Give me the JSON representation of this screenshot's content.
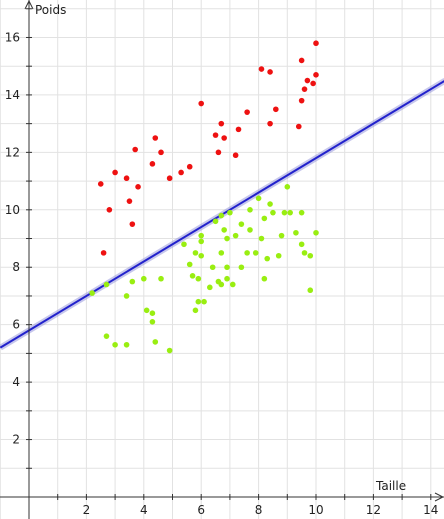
{
  "chart_data": {
    "type": "scatter",
    "xlabel": "Taille",
    "ylabel": "Poids",
    "xlim": [
      -1,
      14.5
    ],
    "ylim": [
      -1.2,
      17.4
    ],
    "x_ticks": [
      2,
      4,
      6,
      8,
      10,
      12,
      14
    ],
    "y_ticks": [
      2,
      4,
      6,
      8,
      10,
      12,
      14,
      16
    ],
    "grid": true,
    "colors": {
      "class_a": "#ee1111",
      "class_b": "#99ee11",
      "line": "#2222cc",
      "line_glow": "#9999dd"
    },
    "series": [
      {
        "color": "#ee1111",
        "points": [
          [
            2.5,
            10.9
          ],
          [
            2.6,
            8.5
          ],
          [
            2.8,
            10.0
          ],
          [
            3.0,
            11.3
          ],
          [
            3.4,
            11.1
          ],
          [
            3.5,
            10.3
          ],
          [
            3.6,
            9.5
          ],
          [
            3.7,
            12.1
          ],
          [
            3.8,
            10.8
          ],
          [
            4.3,
            11.6
          ],
          [
            4.4,
            12.5
          ],
          [
            4.6,
            12.0
          ],
          [
            4.9,
            11.1
          ],
          [
            5.3,
            11.3
          ],
          [
            5.6,
            11.5
          ],
          [
            6.0,
            13.7
          ],
          [
            6.5,
            12.6
          ],
          [
            6.6,
            12.0
          ],
          [
            6.7,
            13.0
          ],
          [
            6.8,
            12.5
          ],
          [
            7.2,
            11.9
          ],
          [
            7.3,
            12.8
          ],
          [
            7.6,
            13.4
          ],
          [
            8.1,
            14.9
          ],
          [
            8.4,
            14.8
          ],
          [
            8.4,
            13.0
          ],
          [
            8.6,
            13.5
          ],
          [
            9.4,
            12.9
          ],
          [
            9.5,
            15.2
          ],
          [
            9.5,
            13.8
          ],
          [
            9.6,
            14.2
          ],
          [
            9.7,
            14.5
          ],
          [
            9.9,
            14.4
          ],
          [
            10.0,
            15.8
          ],
          [
            10.0,
            14.7
          ]
        ]
      },
      {
        "color": "#99ee11",
        "points": [
          [
            2.2,
            7.1
          ],
          [
            2.7,
            7.4
          ],
          [
            2.7,
            5.6
          ],
          [
            3.0,
            5.3
          ],
          [
            3.4,
            7.0
          ],
          [
            3.4,
            5.3
          ],
          [
            3.6,
            7.5
          ],
          [
            4.0,
            7.6
          ],
          [
            4.1,
            6.5
          ],
          [
            4.3,
            6.4
          ],
          [
            4.3,
            6.1
          ],
          [
            4.4,
            5.4
          ],
          [
            4.6,
            7.6
          ],
          [
            4.9,
            5.1
          ],
          [
            5.4,
            8.8
          ],
          [
            5.6,
            8.1
          ],
          [
            5.7,
            7.7
          ],
          [
            5.8,
            6.5
          ],
          [
            5.8,
            8.5
          ],
          [
            5.9,
            7.6
          ],
          [
            5.9,
            6.8
          ],
          [
            6.0,
            9.1
          ],
          [
            6.0,
            8.9
          ],
          [
            6.0,
            8.4
          ],
          [
            6.1,
            6.8
          ],
          [
            6.3,
            7.3
          ],
          [
            6.4,
            8.0
          ],
          [
            6.5,
            9.6
          ],
          [
            6.6,
            7.5
          ],
          [
            6.7,
            8.5
          ],
          [
            6.7,
            7.4
          ],
          [
            6.7,
            9.8
          ],
          [
            6.8,
            9.3
          ],
          [
            6.9,
            9.0
          ],
          [
            6.9,
            7.6
          ],
          [
            6.9,
            8.0
          ],
          [
            7.0,
            9.9
          ],
          [
            7.1,
            7.4
          ],
          [
            7.2,
            9.1
          ],
          [
            7.4,
            8.0
          ],
          [
            7.4,
            9.5
          ],
          [
            7.6,
            8.5
          ],
          [
            7.7,
            10.0
          ],
          [
            7.7,
            9.3
          ],
          [
            7.9,
            8.5
          ],
          [
            8.0,
            10.4
          ],
          [
            8.1,
            9.0
          ],
          [
            8.2,
            9.7
          ],
          [
            8.2,
            7.6
          ],
          [
            8.3,
            8.3
          ],
          [
            8.4,
            10.2
          ],
          [
            8.5,
            9.9
          ],
          [
            8.7,
            8.4
          ],
          [
            8.8,
            9.1
          ],
          [
            8.9,
            9.9
          ],
          [
            9.0,
            10.8
          ],
          [
            9.1,
            9.9
          ],
          [
            9.3,
            9.2
          ],
          [
            9.5,
            9.9
          ],
          [
            9.5,
            8.8
          ],
          [
            9.6,
            8.5
          ],
          [
            9.8,
            8.4
          ],
          [
            9.8,
            7.2
          ],
          [
            10.0,
            9.2
          ]
        ]
      }
    ],
    "lines": [
      {
        "type": "linear",
        "slope": 0.6,
        "intercept": 5.8
      }
    ]
  }
}
